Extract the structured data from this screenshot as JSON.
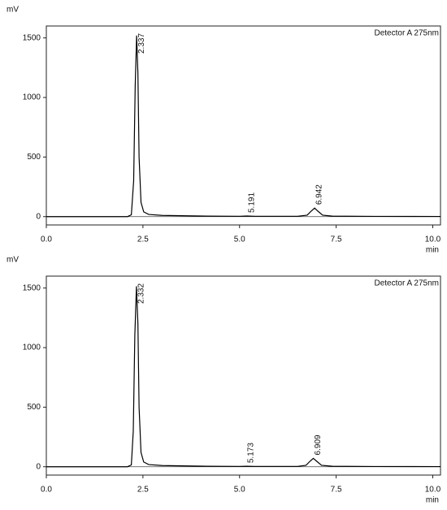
{
  "chart_data": [
    {
      "type": "line",
      "ylabel": "mV",
      "xlabel": "min",
      "xlim": [
        0,
        10.2
      ],
      "ylim": [
        -70,
        1600
      ],
      "xticks": [
        {
          "value": 0,
          "label": "0.0"
        },
        {
          "value": 2.5,
          "label": "2.5"
        },
        {
          "value": 5,
          "label": "5.0"
        },
        {
          "value": 7.5,
          "label": "7.5"
        },
        {
          "value": 10,
          "label": "10.0"
        }
      ],
      "yticks": [
        0,
        500,
        1000,
        1500
      ],
      "x": [
        0,
        1.5,
        2.1,
        2.2,
        2.26,
        2.3,
        2.337,
        2.37,
        2.4,
        2.45,
        2.52,
        2.65,
        3.0,
        4.0,
        5.0,
        5.191,
        5.4,
        6.5,
        6.75,
        6.85,
        6.942,
        7.03,
        7.15,
        7.4,
        8.5,
        10.2
      ],
      "series": [
        {
          "name": "Detector A 275nm",
          "color": "#000000",
          "values": [
            0,
            0,
            0,
            15,
            300,
            1100,
            1520,
            1200,
            500,
            120,
            40,
            18,
            10,
            5,
            3,
            5,
            3,
            3,
            12,
            45,
            72,
            45,
            12,
            4,
            2,
            1
          ]
        }
      ],
      "peaks": [
        2.337,
        5.191,
        6.942
      ]
    },
    {
      "type": "line",
      "ylabel": "mV",
      "xlabel": "min",
      "xlim": [
        0,
        10.2
      ],
      "ylim": [
        -70,
        1600
      ],
      "xticks": [
        {
          "value": 0,
          "label": "0.0"
        },
        {
          "value": 2.5,
          "label": "2.5"
        },
        {
          "value": 5,
          "label": "5.0"
        },
        {
          "value": 7.5,
          "label": "7.5"
        },
        {
          "value": 10,
          "label": "10.0"
        }
      ],
      "yticks": [
        0,
        500,
        1000,
        1500
      ],
      "x": [
        0,
        1.5,
        2.1,
        2.2,
        2.25,
        2.29,
        2.332,
        2.37,
        2.4,
        2.45,
        2.52,
        2.65,
        3.0,
        4.0,
        5.0,
        5.173,
        5.4,
        6.5,
        6.72,
        6.82,
        6.909,
        7.0,
        7.12,
        7.4,
        8.5,
        10.2
      ],
      "series": [
        {
          "name": "Detector A 275nm",
          "color": "#000000",
          "values": [
            0,
            0,
            0,
            15,
            300,
            1100,
            1515,
            1200,
            500,
            120,
            40,
            18,
            10,
            5,
            3,
            4,
            3,
            3,
            12,
            45,
            70,
            45,
            12,
            4,
            2,
            1
          ]
        }
      ],
      "peaks": [
        2.332,
        5.173,
        6.909
      ]
    }
  ]
}
